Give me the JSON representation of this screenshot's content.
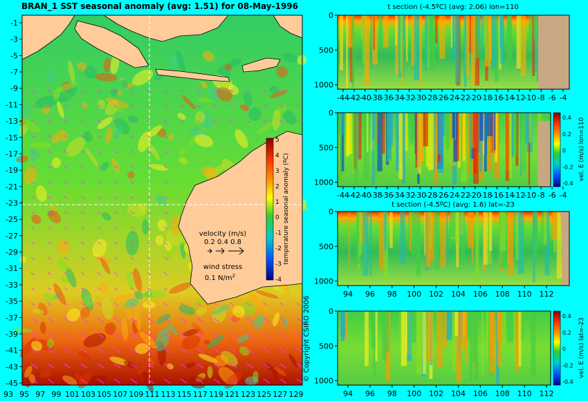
{
  "map": {
    "title": "BRAN_1 SST seasonal anomaly (avg: 1.51) for 08-May-1996",
    "colorbar_label": "temperature seasonal anomaly (ºC)",
    "colorbar_ticks": [
      "5",
      "4",
      "3",
      "2",
      "1",
      "0",
      "-1",
      "-2",
      "-3",
      "-4"
    ],
    "velocity_label": "velocity (m/s)",
    "velocity_scale": "0.2 0.4 0.8",
    "wind_label": "wind stress",
    "wind_value": "0.1 N/m",
    "wind_exp": "2",
    "copyright": "© Copyright CSIRO 2006",
    "y_ticks": [
      "-1",
      "-3",
      "-5",
      "-7",
      "-9",
      "-11",
      "-13",
      "-15",
      "-17",
      "-19",
      "-21",
      "-23",
      "-25",
      "-27",
      "-29",
      "-31",
      "-33",
      "-35",
      "-37",
      "-39",
      "-41",
      "-43",
      "-45"
    ],
    "x_ticks": [
      "93",
      "95",
      "97",
      "99",
      "101",
      "103",
      "105",
      "107",
      "109",
      "111",
      "113",
      "115",
      "117",
      "119",
      "121",
      "123",
      "125",
      "127",
      "129"
    ]
  },
  "panel1": {
    "title": "t section (-4.5ºC) (avg: 2.06) lon=110",
    "y_ticks": [
      "0",
      "500",
      "1000"
    ],
    "x_ticks": [
      "-44",
      "-42",
      "-40",
      "-38",
      "-36",
      "-34",
      "-32",
      "-30",
      "-28",
      "-26",
      "-24",
      "-22",
      "-20",
      "-18",
      "-16",
      "-14",
      "-12",
      "-10",
      "-8",
      "-6",
      "-4"
    ]
  },
  "panel2": {
    "title": "",
    "y_ticks": [
      "0",
      "500",
      "1000"
    ],
    "x_ticks": [
      "-44",
      "-42",
      "-40",
      "-38",
      "-36",
      "-34",
      "-32",
      "-30",
      "-28",
      "-26",
      "-24",
      "-22",
      "-20",
      "-18",
      "-16",
      "-14",
      "-12",
      "-10",
      "-8",
      "-6",
      "-4"
    ],
    "colorbar_label": "vel. E (m/s) lon=110",
    "colorbar_ticks": [
      "0.4",
      "0.2",
      "0",
      "-0.2",
      "-0.4"
    ]
  },
  "panel3": {
    "title": "t section (-4.5ºC) (avg: 1.6) lat=-23",
    "y_ticks": [
      "0",
      "500",
      "1000"
    ],
    "x_ticks": [
      "94",
      "96",
      "98",
      "100",
      "102",
      "104",
      "106",
      "108",
      "110",
      "112"
    ]
  },
  "panel4": {
    "title": "",
    "y_ticks": [
      "0",
      "500",
      "1000"
    ],
    "x_ticks": [
      "94",
      "96",
      "98",
      "100",
      "102",
      "104",
      "106",
      "108",
      "110",
      "112"
    ],
    "colorbar_label": "vel. E (m/s) lat=-23",
    "colorbar_ticks": [
      "0.4",
      "0.2",
      "0",
      "-0.2",
      "-0.4"
    ]
  },
  "colors": {
    "background": "#00ffff",
    "land": "#ffcc99",
    "seafloor": "#c8a882",
    "vector": "#ff33ff"
  },
  "chart_data": [
    {
      "type": "heatmap",
      "title": "BRAN_1 SST seasonal anomaly (avg: 1.51) for 08-May-1996",
      "xlim": [
        93,
        130
      ],
      "ylim": [
        -45,
        0
      ],
      "colorbar_range": [
        -4,
        5
      ],
      "colorbar_label": "temperature seasonal anomaly (ºC)"
    },
    {
      "type": "heatmap",
      "title": "t section (-4.5ºC) (avg: 2.06) lon=110",
      "xlim": [
        -45,
        -3
      ],
      "ylim": [
        1050,
        0
      ]
    },
    {
      "type": "heatmap",
      "title": "",
      "xlim": [
        -45,
        -3
      ],
      "ylim": [
        1050,
        0
      ],
      "colorbar_range": [
        -0.4,
        0.4
      ],
      "colorbar_label": "vel. E (m/s) lon=110"
    },
    {
      "type": "heatmap",
      "title": "t section (-4.5ºC) (avg: 1.6) lat=-23",
      "xlim": [
        93,
        113.8
      ],
      "ylim": [
        1050,
        0
      ]
    },
    {
      "type": "heatmap",
      "title": "",
      "xlim": [
        93,
        113.8
      ],
      "ylim": [
        1050,
        0
      ],
      "colorbar_range": [
        -0.4,
        0.4
      ],
      "colorbar_label": "vel. E (m/s) lat=-23"
    }
  ]
}
